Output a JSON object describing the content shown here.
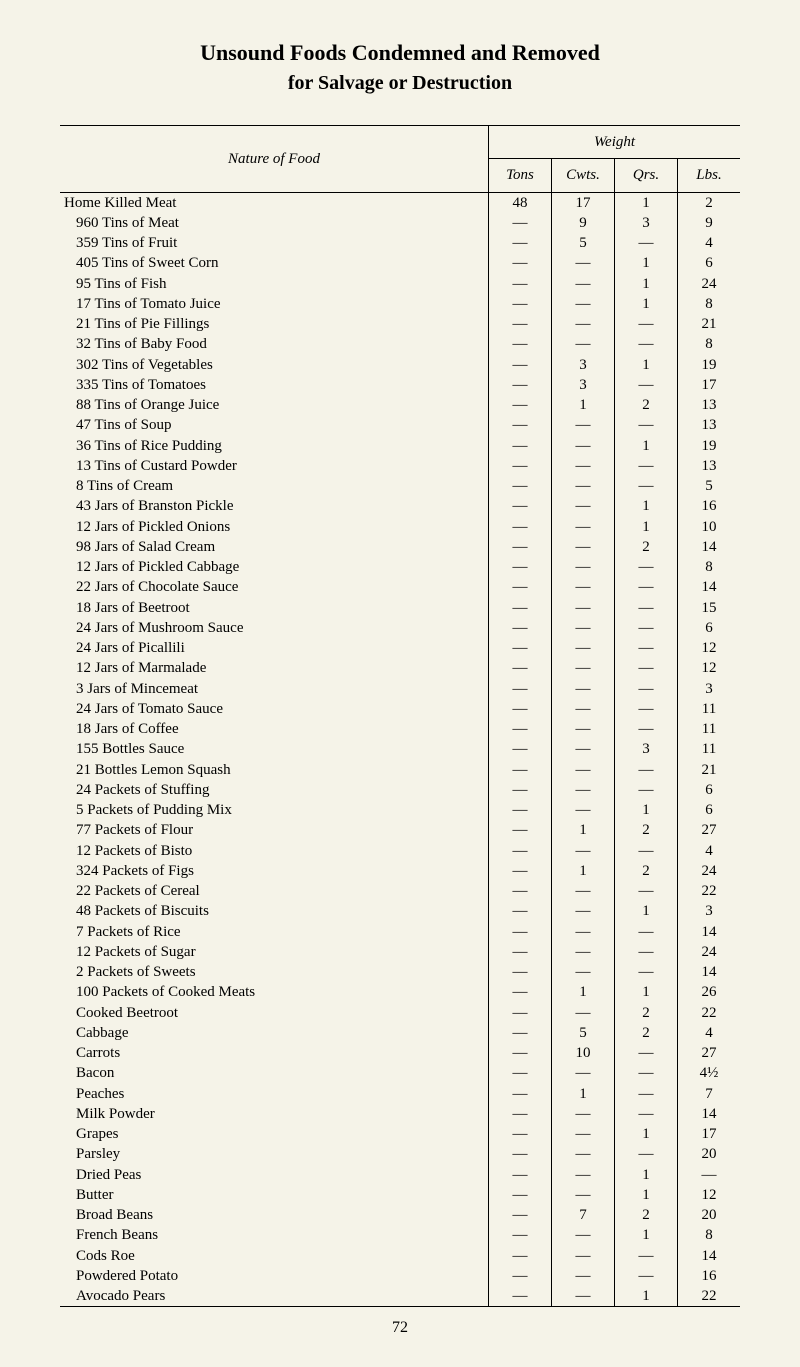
{
  "title": "Unsound Foods Condemned and Removed",
  "subtitle": "for Salvage or Destruction",
  "headers": {
    "nature": "Nature of Food",
    "weight": "Weight",
    "tons": "Tons",
    "cwts": "Cwts.",
    "qrs": "Qrs.",
    "lbs": "Lbs."
  },
  "rows": [
    {
      "name": "Home Killed Meat",
      "indent": false,
      "tons": "48",
      "cwts": "17",
      "qrs": "1",
      "lbs": "2"
    },
    {
      "name": "960 Tins of Meat",
      "indent": true,
      "tons": "—",
      "cwts": "9",
      "qrs": "3",
      "lbs": "9"
    },
    {
      "name": "359 Tins of Fruit",
      "indent": true,
      "tons": "—",
      "cwts": "5",
      "qrs": "—",
      "lbs": "4"
    },
    {
      "name": "405 Tins of Sweet Corn",
      "indent": true,
      "tons": "—",
      "cwts": "—",
      "qrs": "1",
      "lbs": "6"
    },
    {
      "name": "95 Tins of Fish",
      "indent": true,
      "tons": "—",
      "cwts": "—",
      "qrs": "1",
      "lbs": "24"
    },
    {
      "name": "17 Tins of Tomato Juice",
      "indent": true,
      "tons": "—",
      "cwts": "—",
      "qrs": "1",
      "lbs": "8"
    },
    {
      "name": "21 Tins of Pie Fillings",
      "indent": true,
      "tons": "—",
      "cwts": "—",
      "qrs": "—",
      "lbs": "21"
    },
    {
      "name": "32 Tins of Baby Food",
      "indent": true,
      "tons": "—",
      "cwts": "—",
      "qrs": "—",
      "lbs": "8"
    },
    {
      "name": "302 Tins of Vegetables",
      "indent": true,
      "tons": "—",
      "cwts": "3",
      "qrs": "1",
      "lbs": "19"
    },
    {
      "name": "335 Tins of Tomatoes",
      "indent": true,
      "tons": "—",
      "cwts": "3",
      "qrs": "—",
      "lbs": "17"
    },
    {
      "name": "88 Tins of Orange Juice",
      "indent": true,
      "tons": "—",
      "cwts": "1",
      "qrs": "2",
      "lbs": "13"
    },
    {
      "name": "47 Tins of Soup",
      "indent": true,
      "tons": "—",
      "cwts": "—",
      "qrs": "—",
      "lbs": "13"
    },
    {
      "name": "36 Tins of Rice Pudding",
      "indent": true,
      "tons": "—",
      "cwts": "—",
      "qrs": "1",
      "lbs": "19"
    },
    {
      "name": "13 Tins of Custard Powder",
      "indent": true,
      "tons": "—",
      "cwts": "—",
      "qrs": "—",
      "lbs": "13"
    },
    {
      "name": "8 Tins of Cream",
      "indent": true,
      "tons": "—",
      "cwts": "—",
      "qrs": "—",
      "lbs": "5"
    },
    {
      "name": "43 Jars of Branston Pickle",
      "indent": true,
      "tons": "—",
      "cwts": "—",
      "qrs": "1",
      "lbs": "16"
    },
    {
      "name": "12 Jars of Pickled Onions",
      "indent": true,
      "tons": "—",
      "cwts": "—",
      "qrs": "1",
      "lbs": "10"
    },
    {
      "name": "98 Jars of Salad Cream",
      "indent": true,
      "tons": "—",
      "cwts": "—",
      "qrs": "2",
      "lbs": "14"
    },
    {
      "name": "12 Jars of Pickled Cabbage",
      "indent": true,
      "tons": "—",
      "cwts": "—",
      "qrs": "—",
      "lbs": "8"
    },
    {
      "name": "22 Jars of Chocolate Sauce",
      "indent": true,
      "tons": "—",
      "cwts": "—",
      "qrs": "—",
      "lbs": "14"
    },
    {
      "name": "18 Jars of Beetroot",
      "indent": true,
      "tons": "—",
      "cwts": "—",
      "qrs": "—",
      "lbs": "15"
    },
    {
      "name": "24 Jars of Mushroom Sauce",
      "indent": true,
      "tons": "—",
      "cwts": "—",
      "qrs": "—",
      "lbs": "6"
    },
    {
      "name": "24 Jars of Picallili",
      "indent": true,
      "tons": "—",
      "cwts": "—",
      "qrs": "—",
      "lbs": "12"
    },
    {
      "name": "12 Jars of Marmalade",
      "indent": true,
      "tons": "—",
      "cwts": "—",
      "qrs": "—",
      "lbs": "12"
    },
    {
      "name": "3 Jars of Mincemeat",
      "indent": true,
      "tons": "—",
      "cwts": "—",
      "qrs": "—",
      "lbs": "3"
    },
    {
      "name": "24 Jars of Tomato Sauce",
      "indent": true,
      "tons": "—",
      "cwts": "—",
      "qrs": "—",
      "lbs": "11"
    },
    {
      "name": "18 Jars of Coffee",
      "indent": true,
      "tons": "—",
      "cwts": "—",
      "qrs": "—",
      "lbs": "11"
    },
    {
      "name": "155 Bottles Sauce",
      "indent": true,
      "tons": "—",
      "cwts": "—",
      "qrs": "3",
      "lbs": "11"
    },
    {
      "name": "21 Bottles Lemon Squash",
      "indent": true,
      "tons": "—",
      "cwts": "—",
      "qrs": "—",
      "lbs": "21"
    },
    {
      "name": "24 Packets of Stuffing",
      "indent": true,
      "tons": "—",
      "cwts": "—",
      "qrs": "—",
      "lbs": "6"
    },
    {
      "name": "5 Packets of Pudding Mix",
      "indent": true,
      "tons": "—",
      "cwts": "—",
      "qrs": "1",
      "lbs": "6"
    },
    {
      "name": "77 Packets of Flour",
      "indent": true,
      "tons": "—",
      "cwts": "1",
      "qrs": "2",
      "lbs": "27"
    },
    {
      "name": "12 Packets of Bisto",
      "indent": true,
      "tons": "—",
      "cwts": "—",
      "qrs": "—",
      "lbs": "4"
    },
    {
      "name": "324 Packets of Figs",
      "indent": true,
      "tons": "—",
      "cwts": "1",
      "qrs": "2",
      "lbs": "24"
    },
    {
      "name": "22 Packets of Cereal",
      "indent": true,
      "tons": "—",
      "cwts": "—",
      "qrs": "—",
      "lbs": "22"
    },
    {
      "name": "48 Packets of Biscuits",
      "indent": true,
      "tons": "—",
      "cwts": "—",
      "qrs": "1",
      "lbs": "3"
    },
    {
      "name": "7 Packets of Rice",
      "indent": true,
      "tons": "—",
      "cwts": "—",
      "qrs": "—",
      "lbs": "14"
    },
    {
      "name": "12 Packets of Sugar",
      "indent": true,
      "tons": "—",
      "cwts": "—",
      "qrs": "—",
      "lbs": "24"
    },
    {
      "name": "2 Packets of Sweets",
      "indent": true,
      "tons": "—",
      "cwts": "—",
      "qrs": "—",
      "lbs": "14"
    },
    {
      "name": "100 Packets of Cooked Meats",
      "indent": true,
      "tons": "—",
      "cwts": "1",
      "qrs": "1",
      "lbs": "26"
    },
    {
      "name": "Cooked Beetroot",
      "indent": true,
      "tons": "—",
      "cwts": "—",
      "qrs": "2",
      "lbs": "22"
    },
    {
      "name": "Cabbage",
      "indent": true,
      "tons": "—",
      "cwts": "5",
      "qrs": "2",
      "lbs": "4"
    },
    {
      "name": "Carrots",
      "indent": true,
      "tons": "—",
      "cwts": "10",
      "qrs": "—",
      "lbs": "27"
    },
    {
      "name": "Bacon",
      "indent": true,
      "tons": "—",
      "cwts": "—",
      "qrs": "—",
      "lbs": "4½"
    },
    {
      "name": "Peaches",
      "indent": true,
      "tons": "—",
      "cwts": "1",
      "qrs": "—",
      "lbs": "7"
    },
    {
      "name": "Milk Powder",
      "indent": true,
      "tons": "—",
      "cwts": "—",
      "qrs": "—",
      "lbs": "14"
    },
    {
      "name": "Grapes",
      "indent": true,
      "tons": "—",
      "cwts": "—",
      "qrs": "1",
      "lbs": "17"
    },
    {
      "name": "Parsley",
      "indent": true,
      "tons": "—",
      "cwts": "—",
      "qrs": "—",
      "lbs": "20"
    },
    {
      "name": "Dried Peas",
      "indent": true,
      "tons": "—",
      "cwts": "—",
      "qrs": "1",
      "lbs": "—"
    },
    {
      "name": "Butter",
      "indent": true,
      "tons": "—",
      "cwts": "—",
      "qrs": "1",
      "lbs": "12"
    },
    {
      "name": "Broad Beans",
      "indent": true,
      "tons": "—",
      "cwts": "7",
      "qrs": "2",
      "lbs": "20"
    },
    {
      "name": "French Beans",
      "indent": true,
      "tons": "—",
      "cwts": "—",
      "qrs": "1",
      "lbs": "8"
    },
    {
      "name": "Cods Roe",
      "indent": true,
      "tons": "—",
      "cwts": "—",
      "qrs": "—",
      "lbs": "14"
    },
    {
      "name": "Powdered Potato",
      "indent": true,
      "tons": "—",
      "cwts": "—",
      "qrs": "—",
      "lbs": "16"
    },
    {
      "name": "Avocado Pears",
      "indent": true,
      "tons": "—",
      "cwts": "—",
      "qrs": "1",
      "lbs": "22"
    }
  ],
  "page_number": "72"
}
